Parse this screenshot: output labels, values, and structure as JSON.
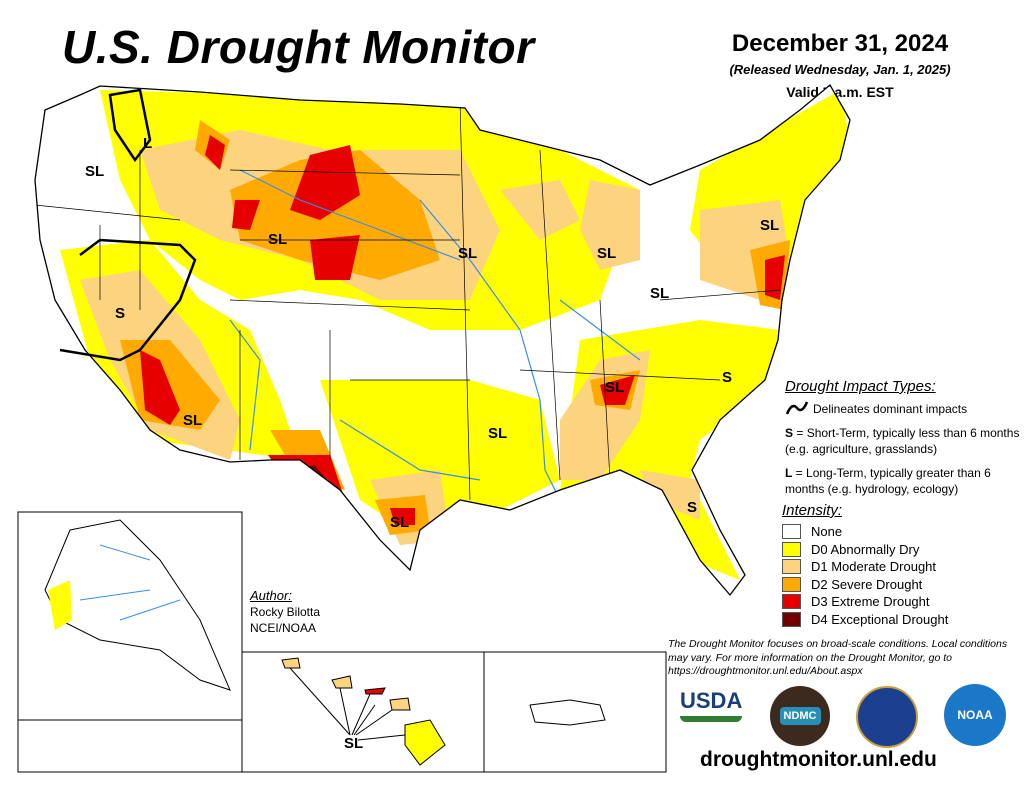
{
  "header": {
    "title": "U.S. Drought Monitor",
    "date": "December 31, 2024",
    "released": "(Released Wednesday, Jan. 1, 2025)",
    "valid": "Valid 7 a.m. EST"
  },
  "impact_legend": {
    "heading": "Drought Impact Types:",
    "line_desc": "Delineates dominant impacts",
    "s_key": "S",
    "s_desc": " = Short-Term, typically less than 6 months (e.g. agriculture, grasslands)",
    "l_key": "L",
    "l_desc": " = Long-Term, typically greater than 6 months (e.g. hydrology, ecology)"
  },
  "intensity_legend": {
    "heading": "Intensity:",
    "items": [
      {
        "label": "None",
        "color": "#FFFFFF"
      },
      {
        "label": "D0 Abnormally Dry",
        "color": "#FFFF00"
      },
      {
        "label": "D1 Moderate Drought",
        "color": "#FCD37F"
      },
      {
        "label": "D2 Severe Drought",
        "color": "#FFAA00"
      },
      {
        "label": "D3 Extreme Drought",
        "color": "#E60000"
      },
      {
        "label": "D4 Exceptional Drought",
        "color": "#730000"
      }
    ]
  },
  "author": {
    "heading": "Author:",
    "name": "Rocky Bilotta",
    "org": "NCEI/NOAA"
  },
  "disclaimer": "The Drought Monitor focuses on broad-scale conditions. Local conditions may vary. For more information on the Drought Monitor, go to https://droughtmonitor.unl.edu/About.aspx",
  "website": "droughtmonitor.unl.edu",
  "logos": {
    "usda": "USDA",
    "ndmc": "NDMC",
    "noaa": "NOAA"
  },
  "map_labels": [
    "SL",
    "L",
    "SL",
    "S",
    "SL",
    "SL",
    "SL",
    "SL",
    "SL",
    "SL",
    "SL",
    "SL",
    "S",
    "S",
    "SL",
    "S"
  ]
}
